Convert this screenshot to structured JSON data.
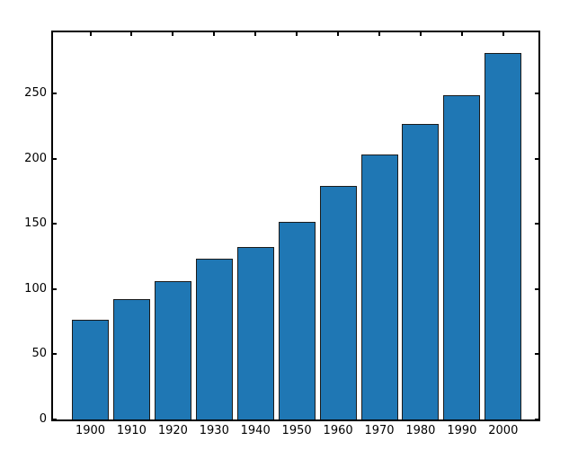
{
  "chart_data": {
    "type": "bar",
    "title": "",
    "xlabel": "",
    "ylabel": "",
    "categories": [
      "1900",
      "1910",
      "1920",
      "1930",
      "1940",
      "1950",
      "1960",
      "1970",
      "1980",
      "1990",
      "2000"
    ],
    "values": [
      76.2,
      92.2,
      106.0,
      123.2,
      132.2,
      151.3,
      179.3,
      203.3,
      226.5,
      248.7,
      281.4
    ],
    "ylim": [
      0,
      297
    ],
    "yticks": [
      0,
      50,
      100,
      150,
      200,
      250
    ],
    "grid": false,
    "legend": null,
    "tick_direction": "in",
    "ticks_on_all_sides": true,
    "bar_color": "#1f77b4",
    "bar_edge_color": "#1b1b1b",
    "axis_color": "#000000",
    "background_color": "#ffffff"
  }
}
